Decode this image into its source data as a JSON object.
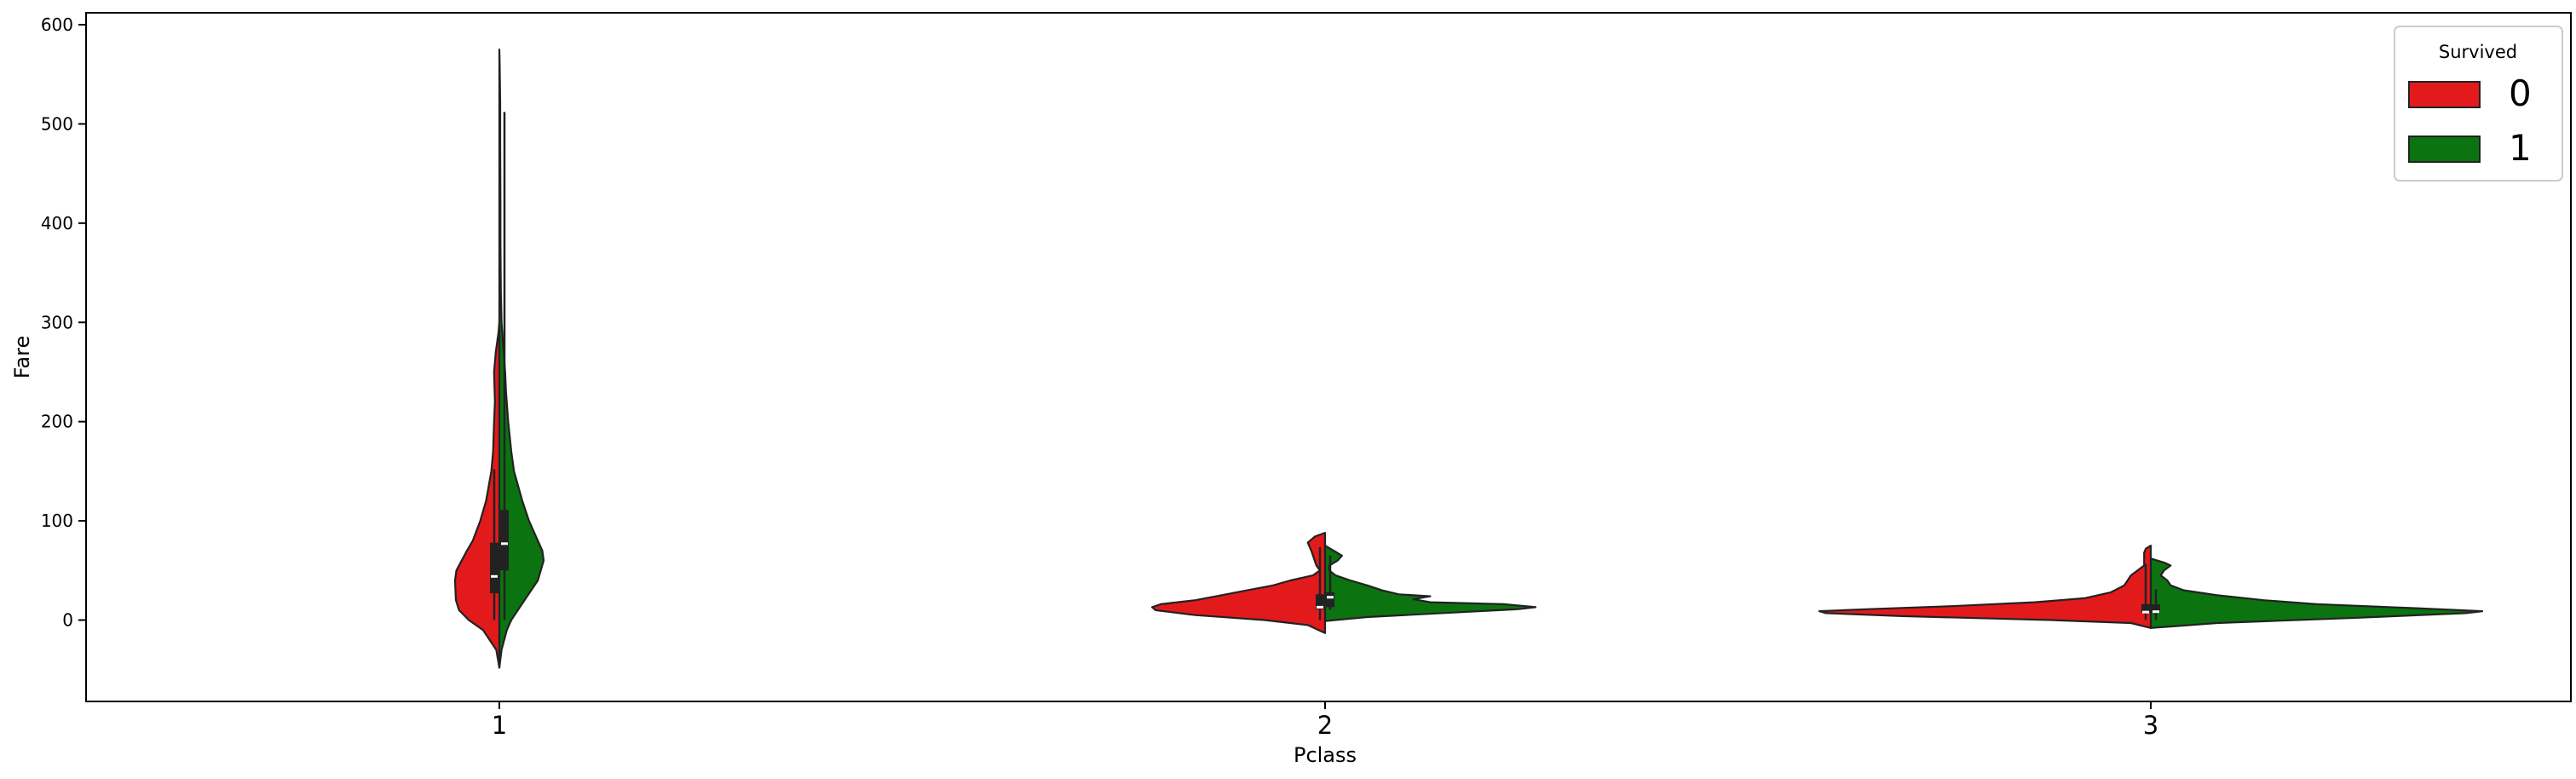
{
  "chart_data": {
    "type": "violin",
    "split": true,
    "title": "",
    "xlabel": "Pclass",
    "ylabel": "Fare",
    "categories": [
      "1",
      "2",
      "3"
    ],
    "ylim": [
      -82,
      612
    ],
    "yticks": [
      0,
      100,
      200,
      300,
      400,
      500,
      600
    ],
    "grid": false,
    "legend": {
      "title": "Survived",
      "placement": "top-right",
      "entries": [
        {
          "label": "0",
          "color": "#e31a1c"
        },
        {
          "label": "1",
          "color": "#0b7310"
        }
      ]
    },
    "series": [
      {
        "name": "0",
        "color": "#e31a1c",
        "groups": [
          {
            "category": "1",
            "quartiles": [
              27,
              44,
              78
            ],
            "whisker": [
              0,
              152
            ],
            "profile": [
              [
                -48,
                0.0
              ],
              [
                -30,
                0.07
              ],
              [
                -10,
                0.37
              ],
              [
                0,
                0.69
              ],
              [
                10,
                0.91
              ],
              [
                20,
                0.98
              ],
              [
                30,
                0.99
              ],
              [
                40,
                1.0
              ],
              [
                50,
                0.97
              ],
              [
                60,
                0.85
              ],
              [
                70,
                0.73
              ],
              [
                80,
                0.6
              ],
              [
                100,
                0.43
              ],
              [
                120,
                0.3
              ],
              [
                150,
                0.18
              ],
              [
                170,
                0.14
              ],
              [
                200,
                0.12
              ],
              [
                220,
                0.1
              ],
              [
                250,
                0.12
              ],
              [
                270,
                0.08
              ],
              [
                290,
                0.02
              ],
              [
                300,
                0.0
              ]
            ]
          },
          {
            "category": "2",
            "quartiles": [
              11,
              13,
              26
            ],
            "whisker": [
              0,
              73.5
            ],
            "profile": [
              [
                -13,
                0.0
              ],
              [
                -5,
                0.1
              ],
              [
                0,
                0.35
              ],
              [
                5,
                0.75
              ],
              [
                10,
                0.98
              ],
              [
                13,
                1.0
              ],
              [
                16,
                0.95
              ],
              [
                20,
                0.75
              ],
              [
                25,
                0.6
              ],
              [
                30,
                0.45
              ],
              [
                35,
                0.3
              ],
              [
                40,
                0.2
              ],
              [
                45,
                0.07
              ],
              [
                50,
                0.03
              ],
              [
                55,
                0.05
              ],
              [
                60,
                0.06
              ],
              [
                70,
                0.08
              ],
              [
                78,
                0.1
              ],
              [
                84,
                0.06
              ],
              [
                88,
                0.0
              ]
            ]
          },
          {
            "category": "3",
            "quartiles": [
              7.75,
              8.05,
              16.1
            ],
            "whisker": [
              0,
              56.5
            ],
            "profile": [
              [
                -8,
                0.0
              ],
              [
                -3,
                0.06
              ],
              [
                0,
                0.3
              ],
              [
                4,
                0.75
              ],
              [
                7,
                0.98
              ],
              [
                9,
                1.0
              ],
              [
                11,
                0.85
              ],
              [
                14,
                0.6
              ],
              [
                18,
                0.35
              ],
              [
                22,
                0.2
              ],
              [
                28,
                0.12
              ],
              [
                35,
                0.08
              ],
              [
                45,
                0.06
              ],
              [
                55,
                0.02
              ],
              [
                62,
                0.02
              ],
              [
                68,
                0.02
              ],
              [
                72,
                0.015
              ],
              [
                75,
                0.0
              ]
            ]
          }
        ]
      },
      {
        "name": "1",
        "color": "#0b7310",
        "groups": [
          {
            "category": "1",
            "quartiles": [
              50,
              77,
              111
            ],
            "whisker": [
              0,
              512
            ],
            "profile": [
              [
                -48,
                0.0
              ],
              [
                -30,
                0.05
              ],
              [
                -10,
                0.17
              ],
              [
                0,
                0.27
              ],
              [
                20,
                0.57
              ],
              [
                40,
                0.87
              ],
              [
                60,
                1.0
              ],
              [
                70,
                0.97
              ],
              [
                80,
                0.87
              ],
              [
                100,
                0.67
              ],
              [
                120,
                0.52
              ],
              [
                150,
                0.33
              ],
              [
                170,
                0.27
              ],
              [
                200,
                0.2
              ],
              [
                230,
                0.15
              ],
              [
                250,
                0.13
              ],
              [
                280,
                0.08
              ],
              [
                300,
                0.05
              ],
              [
                330,
                0.035
              ],
              [
                380,
                0.025
              ],
              [
                420,
                0.025
              ],
              [
                480,
                0.02
              ],
              [
                520,
                0.02
              ],
              [
                560,
                0.008
              ],
              [
                575,
                0.0
              ]
            ]
          },
          {
            "category": "2",
            "quartiles": [
              13,
              23,
              28
            ],
            "whisker": [
              10.5,
              65
            ],
            "profile": [
              [
                -1,
                0.0
              ],
              [
                3,
                0.2
              ],
              [
                8,
                0.65
              ],
              [
                11,
                0.92
              ],
              [
                13,
                1.0
              ],
              [
                16,
                0.85
              ],
              [
                18,
                0.5
              ],
              [
                21,
                0.42
              ],
              [
                24,
                0.5
              ],
              [
                26,
                0.35
              ],
              [
                30,
                0.27
              ],
              [
                35,
                0.2
              ],
              [
                40,
                0.12
              ],
              [
                45,
                0.05
              ],
              [
                50,
                0.02
              ],
              [
                55,
                0.02
              ],
              [
                60,
                0.06
              ],
              [
                65,
                0.08
              ],
              [
                70,
                0.04
              ],
              [
                75,
                0.0
              ]
            ]
          },
          {
            "category": "3",
            "quartiles": [
              7.75,
              8.5,
              15.9
            ],
            "whisker": [
              0,
              31
            ],
            "profile": [
              [
                -8,
                0.0
              ],
              [
                -3,
                0.2
              ],
              [
                2,
                0.6
              ],
              [
                7,
                0.95
              ],
              [
                9,
                1.0
              ],
              [
                12,
                0.8
              ],
              [
                16,
                0.5
              ],
              [
                20,
                0.34
              ],
              [
                25,
                0.2
              ],
              [
                30,
                0.1
              ],
              [
                35,
                0.06
              ],
              [
                40,
                0.05
              ],
              [
                45,
                0.03
              ],
              [
                50,
                0.04
              ],
              [
                55,
                0.06
              ],
              [
                58,
                0.04
              ],
              [
                62,
                0.0
              ]
            ]
          }
        ]
      }
    ]
  }
}
